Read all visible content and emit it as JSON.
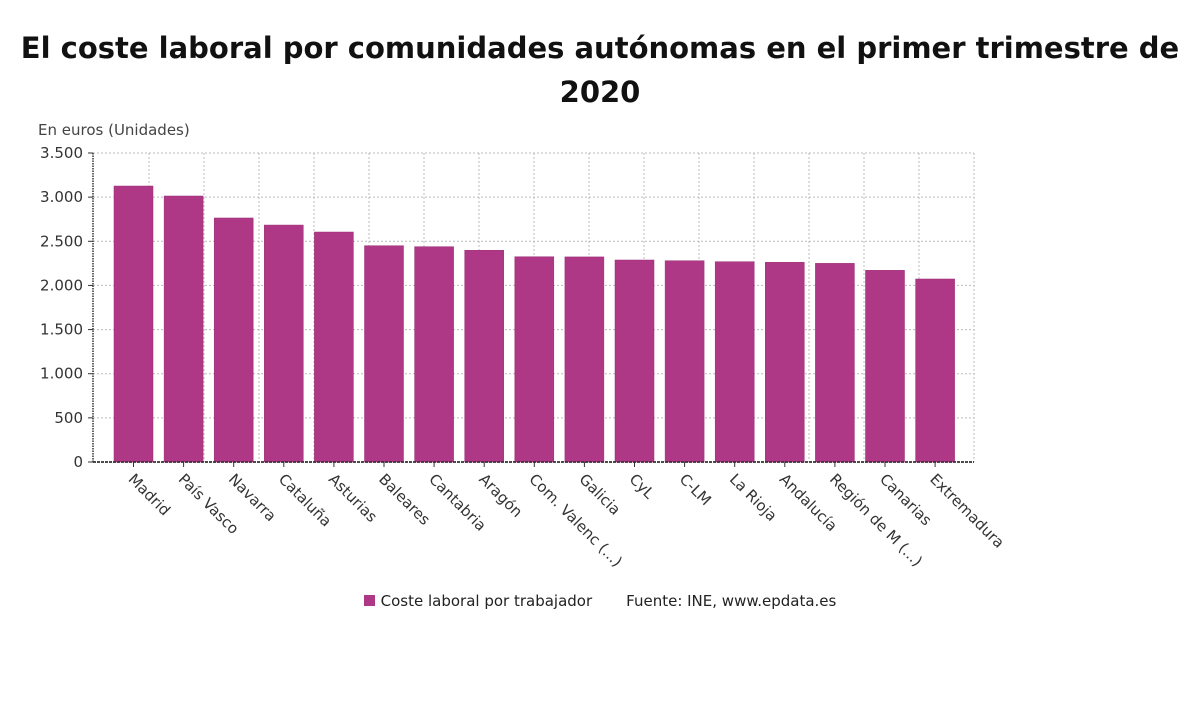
{
  "chart_data": {
    "type": "bar",
    "title": "El coste laboral por comunidades autónomas en el primer trimestre de 2020",
    "ylabel": "En euros (Unidades)",
    "xlabel": "",
    "ylim": [
      0,
      3500
    ],
    "yticks": [
      0,
      500,
      1000,
      1500,
      2000,
      2500,
      3000,
      3500
    ],
    "ytick_labels": [
      "0",
      "500",
      "1.000",
      "1.500",
      "2.000",
      "2.500",
      "3.000",
      "3.500"
    ],
    "grid": true,
    "categories": [
      "Madrid",
      "País Vasco",
      "Navarra",
      "Cataluña",
      "Asturias",
      "Baleares",
      "Cantabria",
      "Aragón",
      "Com. Valenc (...)",
      "Galicia",
      "CyL",
      "C-LM",
      "La Rioja",
      "Andalucía",
      "Región de M (...)",
      "Canarias",
      "Extremadura"
    ],
    "series": [
      {
        "name": "Coste laboral por trabajador",
        "color": "#ae3786",
        "values": [
          3126,
          3013,
          2764,
          2684,
          2605,
          2450,
          2439,
          2398,
          2325,
          2323,
          2288,
          2280,
          2269,
          2262,
          2250,
          2171,
          2073
        ]
      }
    ],
    "legend": {
      "position": "bottom",
      "entries": [
        "Coste laboral por trabajador"
      ]
    },
    "source": "Fuente: INE, www.epdata.es"
  }
}
